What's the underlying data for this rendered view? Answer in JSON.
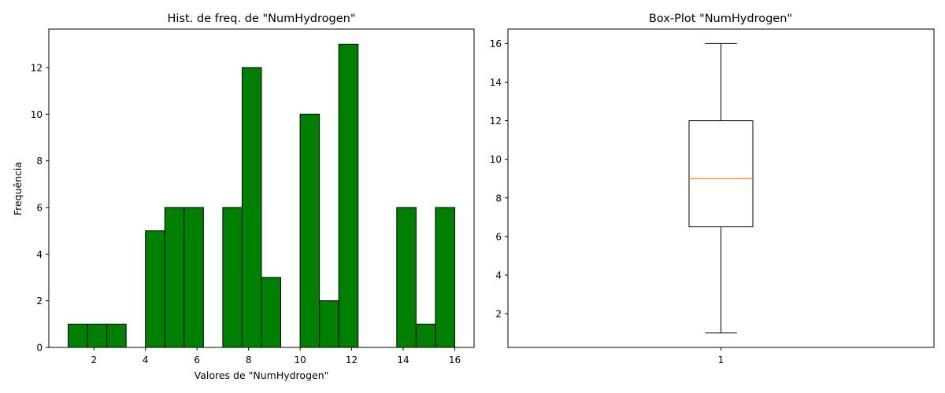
{
  "chart_data": [
    {
      "type": "bar",
      "title": "Hist. de freq. de \"NumHydrogen\"",
      "xlabel": "Valores de \"NumHydrogen\"",
      "ylabel": "Frequência",
      "bin_edges": [
        1.0,
        1.75,
        2.5,
        3.25,
        4.0,
        4.75,
        5.5,
        6.25,
        7.0,
        7.75,
        8.5,
        9.25,
        10.0,
        10.75,
        11.5,
        12.25,
        13.0,
        13.75,
        14.5,
        15.25,
        16.0
      ],
      "values": [
        1,
        1,
        1,
        0,
        5,
        6,
        6,
        0,
        6,
        12,
        3,
        0,
        10,
        2,
        13,
        0,
        0,
        6,
        1,
        6
      ],
      "xticks": [
        2,
        4,
        6,
        8,
        10,
        12,
        14,
        16
      ],
      "yticks": [
        0,
        2,
        4,
        6,
        8,
        10,
        12
      ],
      "xlim": [
        0.25,
        16.75
      ],
      "ylim": [
        0,
        13.65
      ],
      "bar_color": "#008000",
      "edge_color": "#000000",
      "grid": false
    },
    {
      "type": "box",
      "title": "Box-Plot \"NumHydrogen\"",
      "categories": [
        "1"
      ],
      "min": 1,
      "q1": 6.5,
      "median": 9,
      "q3": 12,
      "max": 16,
      "yticks": [
        2,
        4,
        6,
        8,
        10,
        12,
        14,
        16
      ],
      "ylim": [
        0.25,
        16.75
      ],
      "median_color": "#ff7f0e",
      "grid": false
    }
  ]
}
